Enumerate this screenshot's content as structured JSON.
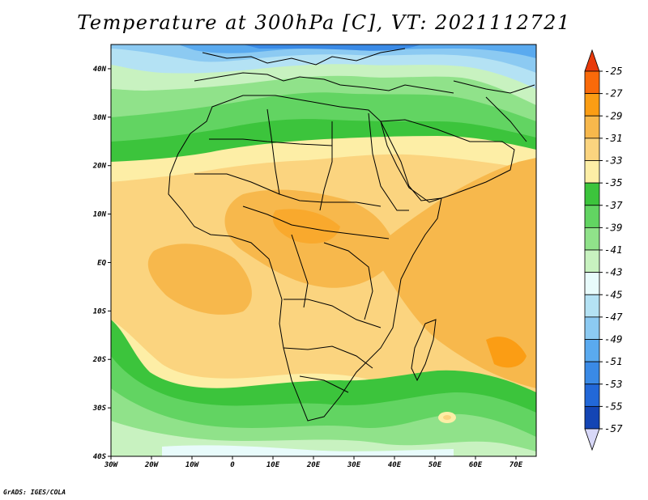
{
  "title": "Temperature at 300hPa [C], VT: 2021112721",
  "credit": "GrADS: IGES/COLA",
  "map": {
    "lon_range": [
      -30,
      75
    ],
    "lat_range": [
      -40,
      45
    ],
    "x_ticks": [
      "30W",
      "20W",
      "10W",
      "0",
      "10E",
      "20E",
      "30E",
      "40E",
      "50E",
      "60E",
      "70E"
    ],
    "y_ticks": [
      "40N",
      "30N",
      "20N",
      "10N",
      "EQ",
      "10S",
      "20S",
      "30S",
      "40S"
    ]
  },
  "colorbar": {
    "labels": [
      "-25",
      "-27",
      "-29",
      "-31",
      "-33",
      "-35",
      "-37",
      "-39",
      "-41",
      "-43",
      "-45",
      "-47",
      "-49",
      "-51",
      "-53",
      "-55",
      "-57"
    ],
    "colors_top_to_bottom": [
      "#e83a0b",
      "#f96a0a",
      "#fb9d14",
      "#f7b84c",
      "#fbd47f",
      "#fdeea6",
      "#3cc43c",
      "#62d462",
      "#90e28a",
      "#c8f2c0",
      "#e8fbfb",
      "#b4e2f4",
      "#8ccaf2",
      "#5aaaef",
      "#3a8ae6",
      "#2268d8",
      "#1445b4",
      "#0c1e88",
      "#d8d8f8"
    ]
  }
}
